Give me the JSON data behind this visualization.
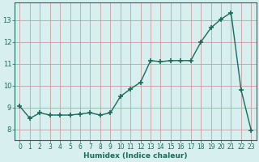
{
  "x": [
    0,
    1,
    2,
    3,
    4,
    5,
    6,
    7,
    8,
    9,
    10,
    11,
    12,
    13,
    14,
    15,
    16,
    17,
    18,
    19,
    20,
    21,
    22,
    23
  ],
  "y": [
    9.05,
    8.5,
    8.75,
    8.65,
    8.65,
    8.65,
    8.7,
    8.75,
    8.65,
    8.75,
    9.5,
    9.85,
    10.15,
    11.15,
    11.1,
    11.15,
    11.15,
    11.15,
    12.0,
    12.65,
    13.05,
    13.35,
    9.8,
    7.95
  ],
  "line_color": "#1a6b5a",
  "marker": "+",
  "marker_size": 4,
  "bg_color": "#d8efef",
  "grid_color": "#c9a0a0",
  "xlabel": "Humidex (Indice chaleur)",
  "xlabel_color": "#1a6b5a",
  "ylim": [
    7.5,
    13.8
  ],
  "xlim": [
    -0.5,
    23.5
  ],
  "yticks": [
    8,
    9,
    10,
    11,
    12,
    13
  ],
  "xtick_labels": [
    "0",
    "1",
    "2",
    "3",
    "4",
    "5",
    "6",
    "7",
    "8",
    "9",
    "10",
    "11",
    "12",
    "13",
    "14",
    "15",
    "16",
    "17",
    "18",
    "19",
    "20",
    "21",
    "22",
    "23"
  ],
  "tick_fontsize": 5.5,
  "xlabel_fontsize": 6.5,
  "ylabel_fontsize": 6,
  "linewidth": 1.0
}
